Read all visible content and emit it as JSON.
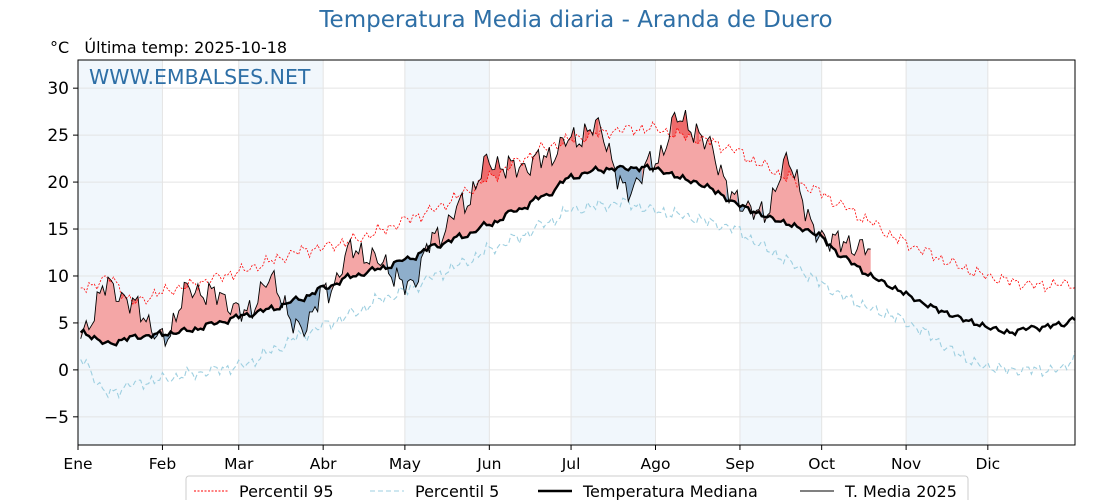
{
  "title": "Temperatura Media diaria - Aranda de Duero",
  "subtitle": "°C   Última temp: 2025-10-18",
  "watermark": "WWW.EMBALSES.NET",
  "chart_data": {
    "type": "line",
    "ylim": [
      -8,
      33
    ],
    "yticks": [
      -5,
      0,
      5,
      10,
      15,
      20,
      25,
      30
    ],
    "ytick_labels": [
      "−5",
      "0",
      "5",
      "10",
      "15",
      "20",
      "25",
      "30"
    ],
    "xlim": [
      0,
      366
    ],
    "months": [
      {
        "label": "Ene",
        "start": 0
      },
      {
        "label": "Feb",
        "start": 31
      },
      {
        "label": "Mar",
        "start": 59
      },
      {
        "label": "Abr",
        "start": 90
      },
      {
        "label": "May",
        "start": 120
      },
      {
        "label": "Jun",
        "start": 151
      },
      {
        "label": "Jul",
        "start": 181
      },
      {
        "label": "Ago",
        "start": 212
      },
      {
        "label": "Sep",
        "start": 243
      },
      {
        "label": "Oct",
        "start": 273
      },
      {
        "label": "Nov",
        "start": 304
      },
      {
        "label": "Dic",
        "start": 334
      }
    ],
    "grid": true,
    "legend_position": "bottom",
    "colors": {
      "p95": "#ff0000",
      "p5": "#9ecfe0",
      "median": "#000000",
      "year": "#000000",
      "above": "#f4a6a6",
      "above_strong": "#ee6b6b",
      "below": "#8eaecb",
      "below_strong": "#2f6fa6",
      "band": "#e6f0fa"
    },
    "series": [
      {
        "name": "Percentil 95",
        "style": "dotted",
        "day": [
          1,
          11,
          21,
          31,
          41,
          51,
          61,
          71,
          81,
          91,
          101,
          111,
          121,
          131,
          141,
          151,
          161,
          171,
          181,
          191,
          201,
          211,
          221,
          231,
          241,
          251,
          261,
          271,
          281,
          291,
          301,
          311,
          321,
          331,
          341,
          351,
          361,
          366
        ],
        "values": [
          8.6,
          9.7,
          7.2,
          8.3,
          9.0,
          9.8,
          10.6,
          11.6,
          12.6,
          13.1,
          13.8,
          14.8,
          16.0,
          17.1,
          18.7,
          20.4,
          22.1,
          23.6,
          24.5,
          25.2,
          25.6,
          25.7,
          25.0,
          24.4,
          23.4,
          21.8,
          20.4,
          19.1,
          17.4,
          15.7,
          13.9,
          12.6,
          11.3,
          10.2,
          9.5,
          9.0,
          9.1,
          9.1
        ]
      },
      {
        "name": "Percentil 5",
        "style": "dashed",
        "day": [
          1,
          11,
          21,
          31,
          41,
          51,
          61,
          71,
          81,
          91,
          101,
          111,
          121,
          131,
          141,
          151,
          161,
          171,
          181,
          191,
          201,
          211,
          221,
          231,
          241,
          251,
          261,
          271,
          281,
          291,
          301,
          311,
          321,
          331,
          341,
          351,
          361,
          366
        ],
        "values": [
          1.0,
          -2.5,
          -1.5,
          -1.0,
          -0.5,
          0.0,
          0.5,
          2.0,
          3.5,
          4.8,
          6.0,
          7.5,
          8.5,
          10.0,
          11.3,
          12.8,
          14.0,
          15.5,
          17.0,
          17.5,
          17.8,
          17.0,
          16.5,
          15.8,
          15.0,
          13.2,
          11.5,
          9.5,
          7.8,
          6.5,
          5.5,
          4.0,
          2.0,
          0.5,
          0.0,
          0.0,
          0.0,
          1.5
        ]
      },
      {
        "name": "Temperatura Mediana",
        "style": "solid-thick",
        "day": [
          1,
          11,
          21,
          31,
          41,
          51,
          61,
          71,
          81,
          91,
          101,
          111,
          121,
          131,
          141,
          151,
          161,
          171,
          181,
          191,
          201,
          211,
          221,
          231,
          241,
          251,
          261,
          271,
          281,
          291,
          301,
          311,
          321,
          331,
          341,
          351,
          361,
          366
        ],
        "values": [
          4.0,
          2.8,
          3.5,
          3.8,
          4.2,
          5.0,
          5.8,
          6.5,
          7.5,
          8.8,
          10.0,
          10.8,
          11.8,
          13.2,
          14.2,
          15.5,
          17.0,
          18.5,
          20.5,
          21.3,
          21.5,
          21.5,
          20.5,
          19.5,
          17.8,
          16.5,
          15.5,
          14.5,
          12.0,
          10.0,
          8.5,
          7.0,
          5.8,
          4.8,
          4.0,
          4.5,
          4.8,
          5.5
        ]
      },
      {
        "name": "T. Media 2025",
        "style": "solid-thin",
        "day": [
          1,
          11,
          21,
          31,
          41,
          51,
          61,
          71,
          81,
          91,
          101,
          111,
          121,
          131,
          141,
          151,
          161,
          171,
          181,
          191,
          201,
          211,
          221,
          231,
          241,
          251,
          261,
          271,
          281,
          291
        ],
        "values": [
          3.8,
          9.0,
          6.8,
          3.2,
          8.5,
          8.0,
          6.0,
          9.5,
          4.2,
          8.2,
          12.8,
          11.5,
          8.8,
          14.0,
          17.5,
          22.0,
          21.5,
          22.5,
          24.5,
          25.8,
          19.0,
          22.0,
          26.8,
          24.2,
          18.2,
          16.5,
          22.0,
          14.5,
          13.5,
          12.8
        ]
      }
    ]
  },
  "legend": {
    "p95": "Percentil 95",
    "p5": "Percentil 5",
    "median": "Temperatura Mediana",
    "year": "T. Media 2025"
  }
}
